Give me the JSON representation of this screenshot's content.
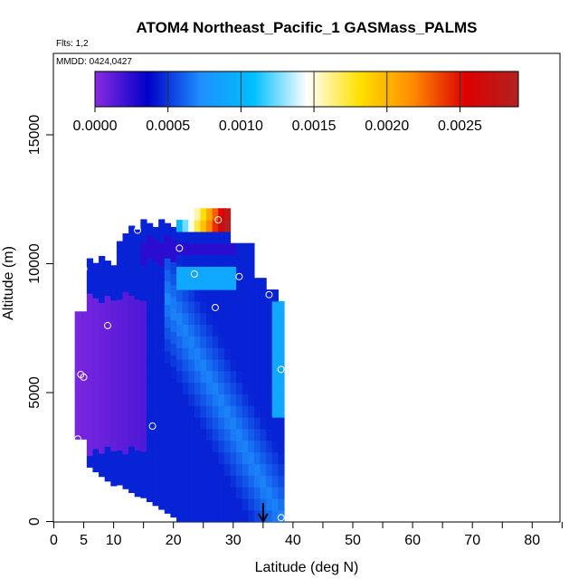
{
  "chart_data": {
    "type": "heatmap",
    "title": "ATOM4 Northeast_Pacific_1 GASMass_PALMS",
    "flights_label": "Flts: 1,2",
    "dates_label": "MMDD: 0424,0427",
    "xlabel": "Latitude (deg N)",
    "ylabel": "Altitude (m)",
    "xlim": [
      0,
      85
    ],
    "ylim": [
      0,
      18000
    ],
    "x_ticks": [
      0,
      5,
      10,
      20,
      30,
      40,
      50,
      60,
      70,
      80
    ],
    "y_ticks": [
      0,
      5000,
      10000,
      15000
    ],
    "colorbar": {
      "min": 0,
      "max": 0.0029,
      "ticks": [
        "0.0000",
        "0.0005",
        "0.0010",
        "0.0015",
        "0.0020",
        "0.0025"
      ],
      "tick_values": [
        0,
        0.0005,
        0.001,
        0.0015,
        0.002,
        0.0025
      ],
      "colors": [
        "#8a2be2",
        "#0000c8",
        "#1e90ff",
        "#00bfff",
        "#ffffff",
        "#ffe000",
        "#ff8c00",
        "#dd0000",
        "#b22222"
      ]
    },
    "arrow_latitude": 35,
    "profiles": [
      {
        "lat": 4,
        "alt": 3200
      },
      {
        "lat": 4.5,
        "alt": 5700
      },
      {
        "lat": 5,
        "alt": 5600
      },
      {
        "lat": 5,
        "alt": 9800
      },
      {
        "lat": 9,
        "alt": 7600
      },
      {
        "lat": 14,
        "alt": 11300
      },
      {
        "lat": 16.5,
        "alt": 3700
      },
      {
        "lat": 17.5,
        "alt": 150
      },
      {
        "lat": 21,
        "alt": 10600
      },
      {
        "lat": 23.5,
        "alt": 9600
      },
      {
        "lat": 27,
        "alt": 8300
      },
      {
        "lat": 27.5,
        "alt": 11700
      },
      {
        "lat": 31,
        "alt": 9500
      },
      {
        "lat": 36,
        "alt": 8800
      },
      {
        "lat": 38,
        "alt": 5900
      },
      {
        "lat": 38,
        "alt": 150
      }
    ]
  }
}
